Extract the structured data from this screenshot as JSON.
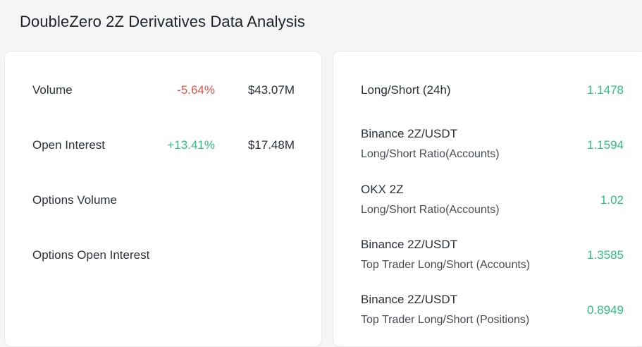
{
  "header": {
    "title": "DoubleZero 2Z Derivatives Data Analysis"
  },
  "left": {
    "rows": [
      {
        "label": "Volume",
        "change": "-5.64%",
        "value": "$43.07M"
      },
      {
        "label": "Open Interest",
        "change": "+13.41%",
        "value": "$17.48M"
      },
      {
        "label": "Options Volume"
      },
      {
        "label": "Options Open Interest"
      }
    ]
  },
  "right": {
    "rows": [
      {
        "title": "Long/Short (24h)",
        "value": "1.1478"
      },
      {
        "title": "Binance 2Z/USDT",
        "sub": "Long/Short Ratio(Accounts)",
        "value": "1.1594"
      },
      {
        "title": "OKX 2Z",
        "sub": "Long/Short Ratio(Accounts)",
        "value": "1.02"
      },
      {
        "title": "Binance 2Z/USDT",
        "sub": "Top Trader Long/Short (Accounts)",
        "value": "1.3585"
      },
      {
        "title": "Binance 2Z/USDT",
        "sub": "Top Trader Long/Short (Positions)",
        "value": "0.8949"
      }
    ]
  },
  "colors": {
    "negative": "#d9534f",
    "positive": "#2ebd85",
    "background": "#f5f5f5"
  }
}
